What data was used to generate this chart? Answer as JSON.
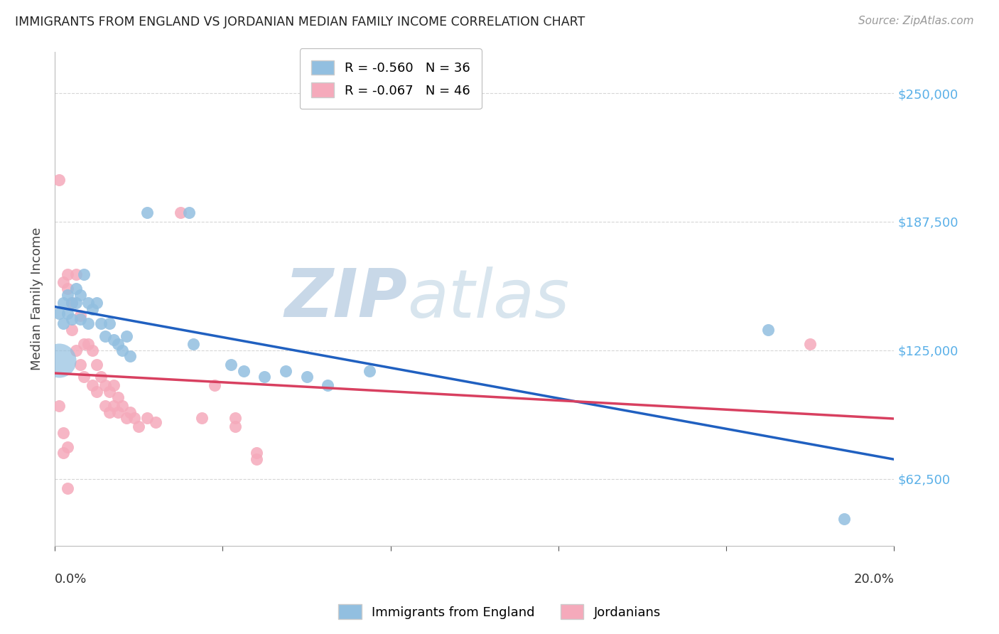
{
  "title": "IMMIGRANTS FROM ENGLAND VS JORDANIAN MEDIAN FAMILY INCOME CORRELATION CHART",
  "source": "Source: ZipAtlas.com",
  "ylabel": "Median Family Income",
  "yticks": [
    62500,
    125000,
    187500,
    250000
  ],
  "ytick_labels": [
    "$62,500",
    "$125,000",
    "$187,500",
    "$250,000"
  ],
  "xlim": [
    0.0,
    0.2
  ],
  "ylim": [
    30000,
    270000
  ],
  "legend_entries": [
    {
      "label": "R = -0.560   N = 36",
      "color": "#92bfe0"
    },
    {
      "label": "R = -0.067   N = 46",
      "color": "#f5aabb"
    }
  ],
  "legend_labels": [
    "Immigrants from England",
    "Jordanians"
  ],
  "watermark_part1": "ZIP",
  "watermark_part2": "atlas",
  "england_points": [
    [
      0.001,
      143000
    ],
    [
      0.002,
      148000
    ],
    [
      0.002,
      138000
    ],
    [
      0.003,
      152000
    ],
    [
      0.003,
      143000
    ],
    [
      0.004,
      148000
    ],
    [
      0.004,
      140000
    ],
    [
      0.005,
      155000
    ],
    [
      0.005,
      148000
    ],
    [
      0.006,
      152000
    ],
    [
      0.006,
      140000
    ],
    [
      0.007,
      162000
    ],
    [
      0.008,
      148000
    ],
    [
      0.008,
      138000
    ],
    [
      0.009,
      145000
    ],
    [
      0.01,
      148000
    ],
    [
      0.011,
      138000
    ],
    [
      0.012,
      132000
    ],
    [
      0.013,
      138000
    ],
    [
      0.014,
      130000
    ],
    [
      0.015,
      128000
    ],
    [
      0.016,
      125000
    ],
    [
      0.017,
      132000
    ],
    [
      0.018,
      122000
    ],
    [
      0.022,
      192000
    ],
    [
      0.032,
      192000
    ],
    [
      0.033,
      128000
    ],
    [
      0.042,
      118000
    ],
    [
      0.045,
      115000
    ],
    [
      0.05,
      112000
    ],
    [
      0.055,
      115000
    ],
    [
      0.06,
      112000
    ],
    [
      0.065,
      108000
    ],
    [
      0.075,
      115000
    ],
    [
      0.17,
      135000
    ],
    [
      0.188,
      43000
    ]
  ],
  "jordan_points": [
    [
      0.001,
      208000
    ],
    [
      0.002,
      158000
    ],
    [
      0.003,
      162000
    ],
    [
      0.003,
      155000
    ],
    [
      0.004,
      148000
    ],
    [
      0.004,
      135000
    ],
    [
      0.005,
      162000
    ],
    [
      0.005,
      125000
    ],
    [
      0.006,
      142000
    ],
    [
      0.006,
      118000
    ],
    [
      0.007,
      128000
    ],
    [
      0.007,
      112000
    ],
    [
      0.008,
      128000
    ],
    [
      0.009,
      125000
    ],
    [
      0.009,
      108000
    ],
    [
      0.01,
      118000
    ],
    [
      0.01,
      105000
    ],
    [
      0.011,
      112000
    ],
    [
      0.012,
      108000
    ],
    [
      0.012,
      98000
    ],
    [
      0.013,
      105000
    ],
    [
      0.013,
      95000
    ],
    [
      0.014,
      108000
    ],
    [
      0.014,
      98000
    ],
    [
      0.015,
      102000
    ],
    [
      0.015,
      95000
    ],
    [
      0.016,
      98000
    ],
    [
      0.017,
      92000
    ],
    [
      0.018,
      95000
    ],
    [
      0.019,
      92000
    ],
    [
      0.02,
      88000
    ],
    [
      0.022,
      92000
    ],
    [
      0.024,
      90000
    ],
    [
      0.03,
      192000
    ],
    [
      0.035,
      92000
    ],
    [
      0.038,
      108000
    ],
    [
      0.043,
      92000
    ],
    [
      0.043,
      88000
    ],
    [
      0.048,
      75000
    ],
    [
      0.048,
      72000
    ],
    [
      0.003,
      58000
    ],
    [
      0.003,
      78000
    ],
    [
      0.18,
      128000
    ],
    [
      0.001,
      98000
    ],
    [
      0.002,
      85000
    ],
    [
      0.002,
      75000
    ]
  ],
  "england_color": "#92bfe0",
  "jordan_color": "#f5aabb",
  "england_line_color": "#2060c0",
  "jordan_line_color": "#d84060",
  "background_color": "#ffffff",
  "grid_color": "#cccccc",
  "title_color": "#222222",
  "right_label_color": "#5ab0e8",
  "watermark_zip_color": "#c8d8e8",
  "watermark_atlas_color": "#d8e5ee"
}
